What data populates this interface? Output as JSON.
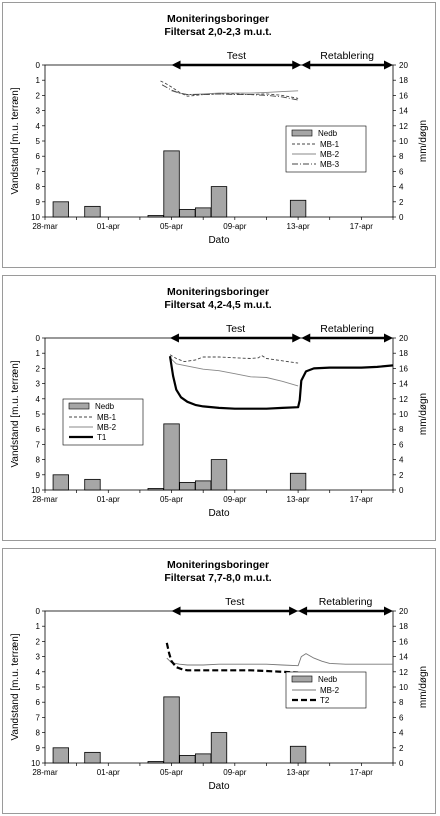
{
  "chart_data": [
    {
      "type": "bar+line",
      "title": "Moniteringsboringer",
      "subtitle": "Filtersat 2,0-2,3 m.u.t.",
      "xlabel": "Dato",
      "ylabel": "Vandstand [m.u. terræn]",
      "y2label": "mm/døgn",
      "ylim": [
        10,
        0
      ],
      "y2lim": [
        0,
        20
      ],
      "x_day_range": [
        0,
        22
      ],
      "x_ticks": [
        "28-mar",
        "01-apr",
        "05-apr",
        "09-apr",
        "13-apr",
        "17-apr"
      ],
      "y_ticks": [
        "0",
        "1",
        "2",
        "3",
        "4",
        "5",
        "6",
        "7",
        "8",
        "9",
        "10"
      ],
      "y2_ticks": [
        "20",
        "18",
        "16",
        "14",
        "12",
        "10",
        "8",
        "6",
        "4",
        "2",
        "0"
      ],
      "phases": [
        {
          "label": "Test",
          "start_day": 8,
          "end_day": 16.2
        },
        {
          "label": "Retablering",
          "start_day": 16.2,
          "end_day": 22
        }
      ],
      "bars": {
        "name": "Nedb",
        "days": [
          1,
          3,
          7,
          8,
          9,
          10,
          11,
          16
        ],
        "values": [
          2.0,
          1.4,
          0.2,
          8.7,
          1.0,
          1.2,
          4.0,
          2.2
        ]
      },
      "series": [
        {
          "name": "MB-1",
          "style": "dashed",
          "color": "#444444",
          "x": [
            7.3,
            7.6,
            8.0,
            8.5,
            9.0,
            10.0,
            11.0,
            12.0,
            13.0,
            14.0,
            15.0,
            16.0
          ],
          "y": [
            1.05,
            1.2,
            1.45,
            1.8,
            2.05,
            1.95,
            1.9,
            1.9,
            1.95,
            1.9,
            2.0,
            2.2
          ]
        },
        {
          "name": "MB-2",
          "style": "solid",
          "color": "#888888",
          "x": [
            8.0,
            8.5,
            9.0,
            10.0,
            11.0,
            12.0,
            13.0,
            14.0,
            15.0,
            16.0
          ],
          "y": [
            1.7,
            1.85,
            1.95,
            1.9,
            1.85,
            1.85,
            1.85,
            1.8,
            1.75,
            1.7
          ]
        },
        {
          "name": "MB-3",
          "style": "dashdot",
          "color": "#444444",
          "x": [
            7.4,
            8.0,
            8.5,
            9.0,
            10.0,
            11.0,
            12.0,
            13.0,
            14.0,
            15.0,
            16.0
          ],
          "y": [
            1.3,
            1.65,
            1.85,
            1.95,
            1.95,
            1.9,
            1.95,
            1.95,
            2.0,
            2.1,
            2.3
          ]
        }
      ],
      "legend_order": [
        "Nedb",
        "MB-1",
        "MB-2",
        "MB-3"
      ],
      "legend_position": "right"
    },
    {
      "type": "bar+line",
      "title": "Moniteringsboringer",
      "subtitle": "Filtersat 4,2-4,5 m.u.t.",
      "xlabel": "Dato",
      "ylabel": "Vandstand [m.u. terræn]",
      "y2label": "mm/døgn",
      "ylim": [
        10,
        0
      ],
      "y2lim": [
        0,
        20
      ],
      "x_day_range": [
        0,
        22
      ],
      "x_ticks": [
        "28-mar",
        "01-apr",
        "05-apr",
        "09-apr",
        "13-apr",
        "17-apr"
      ],
      "y_ticks": [
        "0",
        "1",
        "2",
        "3",
        "4",
        "5",
        "6",
        "7",
        "8",
        "9",
        "10"
      ],
      "y2_ticks": [
        "20",
        "18",
        "16",
        "14",
        "12",
        "10",
        "8",
        "6",
        "4",
        "2",
        "0"
      ],
      "phases": [
        {
          "label": "Test",
          "start_day": 7.9,
          "end_day": 16.2
        },
        {
          "label": "Retablering",
          "start_day": 16.2,
          "end_day": 22
        }
      ],
      "bars": {
        "name": "Nedb",
        "days": [
          1,
          3,
          7,
          8,
          9,
          10,
          11,
          16
        ],
        "values": [
          2.0,
          1.4,
          0.2,
          8.7,
          1.0,
          1.2,
          4.0,
          2.2
        ]
      },
      "series": [
        {
          "name": "MB-1",
          "style": "dashed",
          "color": "#444444",
          "x": [
            7.9,
            8.3,
            8.8,
            9.5,
            10.0,
            11.0,
            12.0,
            13.0,
            13.5,
            13.7,
            14.0,
            15.0,
            16.0
          ],
          "y": [
            1.1,
            1.35,
            1.55,
            1.45,
            1.25,
            1.25,
            1.3,
            1.35,
            1.3,
            1.15,
            1.35,
            1.5,
            1.65
          ]
        },
        {
          "name": "MB-2",
          "style": "solid",
          "color": "#888888",
          "x": [
            7.9,
            8.3,
            9.0,
            10.0,
            11.0,
            12.0,
            13.0,
            14.0,
            15.0,
            16.0
          ],
          "y": [
            1.3,
            1.7,
            1.85,
            2.05,
            2.15,
            2.35,
            2.55,
            2.6,
            2.85,
            3.15
          ]
        },
        {
          "name": "T1",
          "style": "thick",
          "color": "#000000",
          "x": [
            7.9,
            8.1,
            8.3,
            8.6,
            9.0,
            9.5,
            10.0,
            11.0,
            12.0,
            13.0,
            14.0,
            15.0,
            16.0,
            16.1,
            16.2,
            16.5,
            17.0,
            18.0,
            19.0,
            20.0,
            21.0,
            22.0
          ],
          "y": [
            1.2,
            2.5,
            3.4,
            3.9,
            4.2,
            4.4,
            4.5,
            4.6,
            4.65,
            4.65,
            4.65,
            4.6,
            4.55,
            4.1,
            2.8,
            2.2,
            2.0,
            1.95,
            1.95,
            1.95,
            1.9,
            1.8
          ]
        }
      ],
      "legend_order": [
        "Nedb",
        "MB-1",
        "MB-2",
        "T1"
      ],
      "legend_position": "left"
    },
    {
      "type": "bar+line",
      "title": "Moniteringsboringer",
      "subtitle": "Filtersat 7,7-8,0 m.u.t.",
      "xlabel": "Dato",
      "ylabel": "Vandstand [m.u. terræn]",
      "y2label": "mm/døgn",
      "ylim": [
        10,
        0
      ],
      "y2lim": [
        0,
        20
      ],
      "x_day_range": [
        0,
        22
      ],
      "x_ticks": [
        "28-mar",
        "01-apr",
        "05-apr",
        "09-apr",
        "13-apr",
        "17-apr"
      ],
      "y_ticks": [
        "0",
        "1",
        "2",
        "3",
        "4",
        "5",
        "6",
        "7",
        "8",
        "9",
        "10"
      ],
      "y2_ticks": [
        "20",
        "18",
        "16",
        "14",
        "12",
        "10",
        "8",
        "6",
        "4",
        "2",
        "0"
      ],
      "phases": [
        {
          "label": "Test",
          "start_day": 8,
          "end_day": 16
        },
        {
          "label": "Retablering",
          "start_day": 16,
          "end_day": 22
        }
      ],
      "bars": {
        "name": "Nedb",
        "days": [
          1,
          3,
          7,
          8,
          9,
          10,
          11,
          16
        ],
        "values": [
          2.0,
          1.4,
          0.2,
          8.7,
          1.0,
          1.2,
          4.0,
          2.2
        ]
      },
      "series": [
        {
          "name": "MB-2",
          "style": "solid",
          "color": "#777777",
          "x": [
            7.7,
            8.0,
            8.5,
            9.0,
            10.0,
            11.0,
            12.0,
            13.0,
            14.0,
            15.0,
            16.0,
            16.2,
            16.5,
            17.0,
            17.5,
            18.0,
            19.0,
            20.0,
            21.0,
            22.0
          ],
          "y": [
            3.1,
            3.4,
            3.5,
            3.55,
            3.55,
            3.5,
            3.5,
            3.5,
            3.5,
            3.55,
            3.6,
            3.0,
            2.8,
            3.1,
            3.3,
            3.45,
            3.5,
            3.5,
            3.5,
            3.5
          ]
        },
        {
          "name": "T2",
          "style": "thickdash",
          "color": "#000000",
          "x": [
            7.7,
            7.85,
            8.0,
            8.3,
            8.7,
            9.0,
            10.0,
            11.0,
            12.0,
            13.0,
            14.0,
            15.0,
            16.0
          ],
          "y": [
            2.1,
            2.8,
            3.3,
            3.7,
            3.85,
            3.9,
            3.9,
            3.9,
            3.9,
            3.9,
            3.95,
            4.0,
            4.05
          ]
        }
      ],
      "legend_order": [
        "Nedb",
        "MB-2",
        "T2"
      ],
      "legend_position": "right"
    }
  ]
}
